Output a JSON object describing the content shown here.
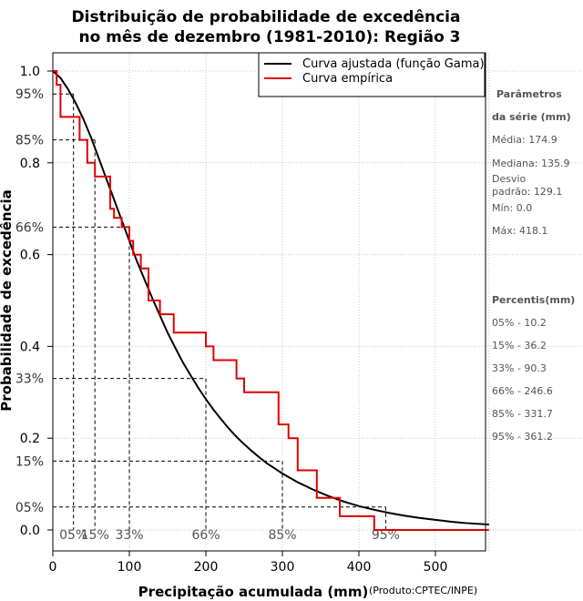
{
  "chart_data": {
    "type": "line",
    "title": [
      "Distribuição de probabilidade de excedência",
      "no mês de dezembro (1981-2010): Região 3"
    ],
    "xlabel": "Precipitação acumulada (mm)",
    "ylabel": "Probabilidade de excedência",
    "credit": "(Produto:CPTEC/INPE)",
    "xlim": [
      0,
      570
    ],
    "ylim": [
      0,
      1
    ],
    "x_ticks": [
      0,
      100,
      200,
      300,
      400,
      500
    ],
    "y_ticks": [
      0.0,
      0.2,
      0.4,
      0.6,
      0.8,
      1.0
    ],
    "y_tick_labels": [
      "0.0",
      "0.2",
      "0.4",
      "0.6",
      "0.8",
      "1.0"
    ],
    "grid": true,
    "legend": {
      "position": "top-right",
      "entries": [
        {
          "label": "Curva ajustada (função Gama)",
          "color": "#000000"
        },
        {
          "label": "Curva empírica",
          "color": "#e00000"
        }
      ]
    },
    "series": [
      {
        "name": "Curva ajustada (função Gama)",
        "color": "#000000",
        "x": [
          0,
          10,
          20,
          30,
          40,
          50,
          60,
          70,
          80,
          90,
          100,
          110,
          120,
          130,
          140,
          150,
          160,
          170,
          180,
          190,
          200,
          210,
          220,
          230,
          240,
          250,
          260,
          270,
          280,
          290,
          300,
          320,
          340,
          360,
          380,
          400,
          420,
          440,
          460,
          480,
          500,
          520,
          540,
          570
        ],
        "values": [
          1.0,
          0.985,
          0.96,
          0.93,
          0.895,
          0.855,
          0.81,
          0.765,
          0.72,
          0.675,
          0.63,
          0.585,
          0.545,
          0.505,
          0.467,
          0.43,
          0.397,
          0.365,
          0.337,
          0.31,
          0.285,
          0.262,
          0.241,
          0.221,
          0.203,
          0.187,
          0.172,
          0.158,
          0.145,
          0.134,
          0.123,
          0.104,
          0.088,
          0.074,
          0.062,
          0.052,
          0.044,
          0.037,
          0.031,
          0.026,
          0.022,
          0.018,
          0.015,
          0.012
        ]
      },
      {
        "name": "Curva empírica",
        "color": "#e00000",
        "type": "step",
        "x": [
          0,
          5,
          10,
          25,
          35,
          45,
          55,
          65,
          75,
          80,
          90,
          100,
          105,
          115,
          125,
          140,
          158,
          170,
          200,
          210,
          215,
          240,
          250,
          270,
          295,
          308,
          320,
          330,
          345,
          355,
          375,
          420,
          570
        ],
        "values": [
          1.0,
          0.97,
          0.9,
          0.9,
          0.85,
          0.8,
          0.77,
          0.77,
          0.7,
          0.68,
          0.66,
          0.63,
          0.6,
          0.57,
          0.5,
          0.47,
          0.43,
          0.43,
          0.4,
          0.37,
          0.37,
          0.33,
          0.3,
          0.3,
          0.23,
          0.2,
          0.13,
          0.13,
          0.07,
          0.07,
          0.03,
          0.0,
          0.0
        ]
      }
    ],
    "reference_lines": [
      {
        "pct_label": "05%",
        "prob_label": "95%",
        "p": 0.95,
        "x": 27
      },
      {
        "pct_label": "15%",
        "prob_label": "85%",
        "p": 0.85,
        "x": 55
      },
      {
        "pct_label": "33%",
        "prob_label": "66%",
        "p": 0.66,
        "x": 100
      },
      {
        "pct_label": "66%",
        "prob_label": "33%",
        "p": 0.33,
        "x": 200
      },
      {
        "pct_label": "85%",
        "prob_label": "15%",
        "p": 0.15,
        "x": 300
      },
      {
        "pct_label": "95%",
        "prob_label": "05%",
        "p": 0.05,
        "x": 435
      }
    ]
  },
  "side_panel": {
    "params_header": [
      "Parâmetros",
      "da série (mm)"
    ],
    "params": [
      [
        "Média: 174.9"
      ],
      [
        "Mediana: 135.9"
      ],
      [
        "Desvio",
        "padrão: 129.1"
      ],
      [
        "Mín: 0.0"
      ],
      [
        "Máx: 418.1"
      ]
    ],
    "percentis_header": "Percentis(mm)",
    "percentis": [
      "05% - 10.2",
      "15% - 36.2",
      "33% - 90.3",
      "66% - 246.6",
      "85% - 331.7",
      "95% - 361.2"
    ]
  }
}
